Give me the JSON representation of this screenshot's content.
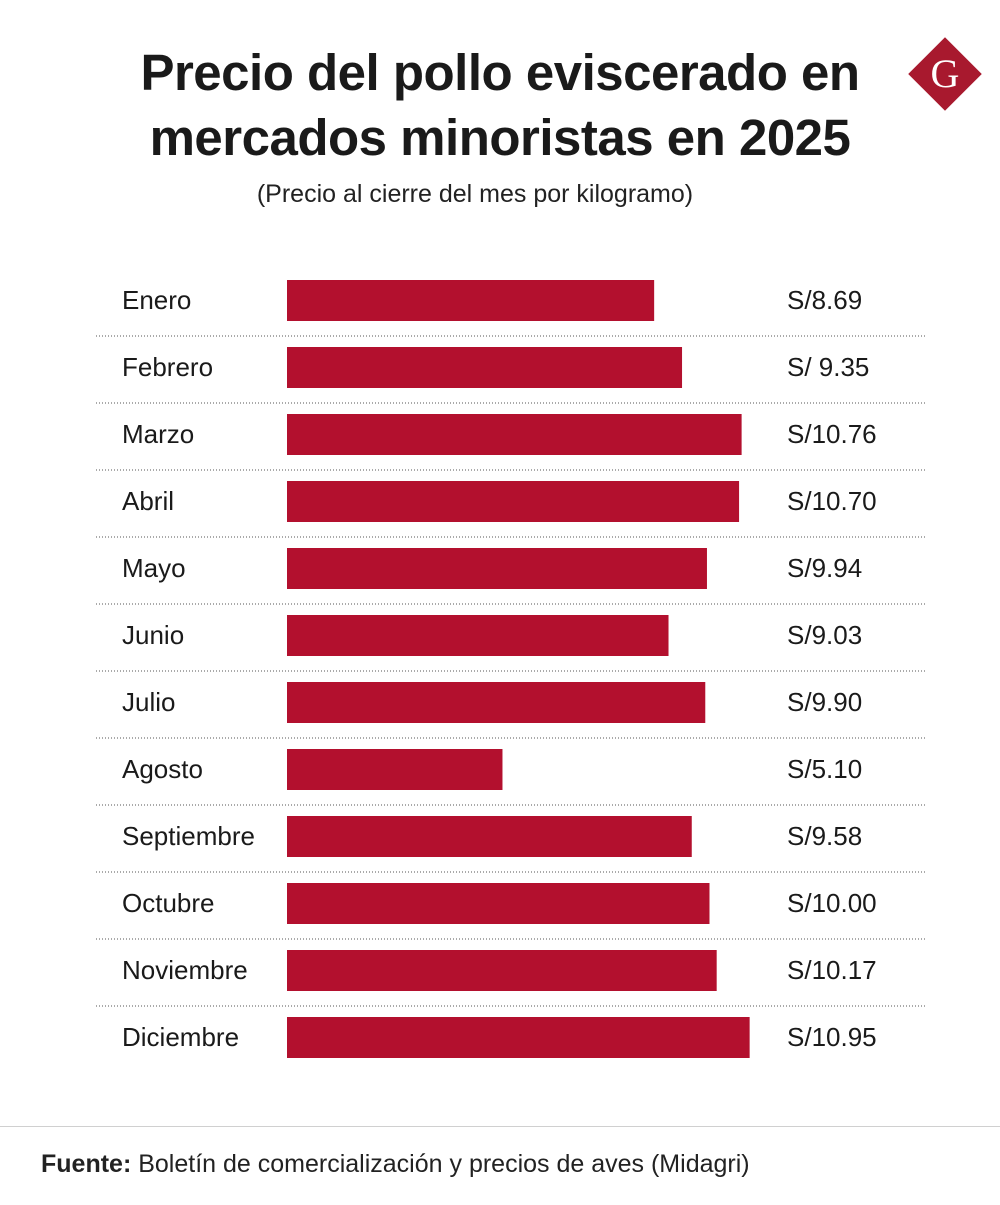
{
  "title_line1": "Precio del pollo eviscerado en",
  "title_line2": "mercados minoristas en 2025",
  "subtitle": "(Precio al cierre del mes por kilogramo)",
  "logo": {
    "letter": "G",
    "color": "#a8192e"
  },
  "chart_data": {
    "type": "bar",
    "orientation": "horizontal",
    "title": "Precio del pollo eviscerado en mercados minoristas en 2025",
    "subtitle": "(Precio al cierre del mes por kilogramo)",
    "categories": [
      "Enero",
      "Febrero",
      "Marzo",
      "Abril",
      "Mayo",
      "Junio",
      "Julio",
      "Agosto",
      "Septiembre",
      "Octubre",
      "Noviembre",
      "Diciembre"
    ],
    "values": [
      8.69,
      9.35,
      10.76,
      10.7,
      9.94,
      9.03,
      9.9,
      5.1,
      9.58,
      10.0,
      10.17,
      10.95
    ],
    "value_labels": [
      "S/8.69",
      "S/ 9.35",
      "S/10.76",
      "S/10.70",
      "S/9.94",
      "S/9.03",
      "S/9.90",
      "S/5.10",
      "S/9.58",
      "S/10.00",
      "S/10.17",
      "S/10.95"
    ],
    "bar_color": "#b3102e",
    "grid": false
  },
  "footer": {
    "label": "Fuente:",
    "text": " Boletín de comercialización y precios de aves (Midagri)"
  }
}
